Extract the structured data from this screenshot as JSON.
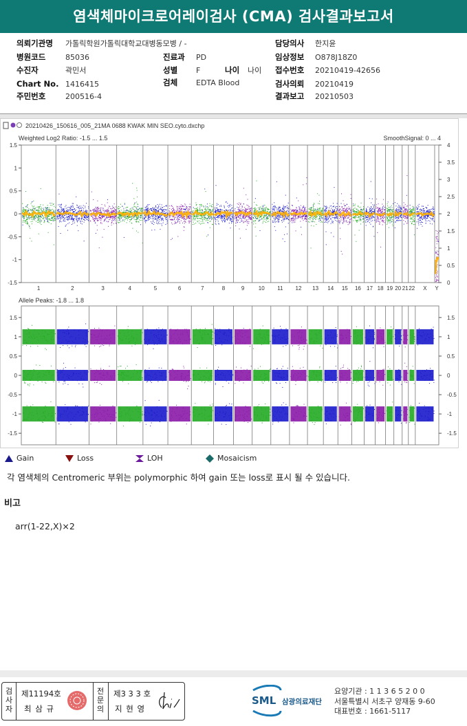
{
  "title": "염색체마이크로어레이검사 (CMA) 검사결과보고서",
  "info": {
    "institution_label": "의뢰기관명",
    "institution_value": "가톨릭학원가톨릭대학교대병동모병 / -",
    "hospital_code_label": "병원코드",
    "hospital_code_value": "85036",
    "department_label": "진료과",
    "department_value": "PD",
    "patient_label": "수진자",
    "patient_value": "곽민서",
    "sex_label": "성별",
    "sex_value": "F",
    "age_label": "나이",
    "age_value": "나이",
    "chart_label": "Chart No.",
    "chart_value": "1416415",
    "specimen_label": "검체",
    "specimen_value": "EDTA Blood",
    "id_label": "주민번호",
    "id_value": "200516-4",
    "doctor_label": "담당의사",
    "doctor_value": "한지윤",
    "clinical_label": "임상정보",
    "clinical_value": "O878J18Z0",
    "receipt_label": "접수번호",
    "receipt_value": "20210419-42656",
    "request_label": "검사의뢰",
    "request_value": "20210419",
    "report_label": "결과보고",
    "report_value": "20210503"
  },
  "plot": {
    "filename": "20210426_150616_005_21MA 0688 KWAK MIN SEO.cyto.dxchp",
    "log2_title": "Weighted Log2 Ratio: -1.5 ... 1.5",
    "smooth_title": "SmoothSignal: 0 ... 4",
    "allele_title": "Allele Peaks: -1.8 ... 1.8",
    "log2_left_ticks": [
      "1.5",
      "1",
      "0.5",
      "0",
      "-0.5",
      "-1",
      "-1.5"
    ],
    "smooth_right_ticks": [
      "4",
      "3.5",
      "3",
      "2.5",
      "2",
      "1.5",
      "1",
      "0.5",
      "0"
    ],
    "allele_left_ticks": [
      "1.5",
      "1",
      "0.5",
      "0",
      "-0.5",
      "-1",
      "-1.5"
    ],
    "allele_right_ticks": [
      "1.5",
      "1",
      "0.5",
      "0",
      "-0.5",
      "-1",
      "-1.5"
    ],
    "chromosomes": [
      "1",
      "2",
      "3",
      "4",
      "5",
      "6",
      "7",
      "8",
      "9",
      "10",
      "11",
      "12",
      "13",
      "14",
      "15",
      "16",
      "17",
      "18",
      "19",
      "20",
      "21",
      "22",
      "X",
      "Y"
    ]
  },
  "legend": {
    "gain": "Gain",
    "loss": "Loss",
    "loh": "LOH",
    "mosaicism": "Mosaicism"
  },
  "note": "각 염색체의 Centromeric 부위는 polymorphic 하여 gain 또는 loss로 표시 될 수 있습니다.",
  "remarks_label": "비고",
  "remarks_value": "arr(1-22,X)×2",
  "signature": {
    "label1": "검사자",
    "num1": "제11194호",
    "name1": "최 삼 규",
    "label2": "전문의",
    "num2": "제3 3 3 호",
    "name2": "지 현 영"
  },
  "org": {
    "logo": "SML",
    "name": "삼광의료재단",
    "line1": "요양기관 : 1 1 3 6 5 2 0 0",
    "line2": "서울특별시 서초구 양재동 9-60",
    "line3": "대표번호 : 1661-5117"
  },
  "colors": {
    "header": "#0f7a73",
    "green": "#22aa22",
    "blue": "#1a1acc",
    "purple": "#8a1aa8",
    "orange": "#ffb000"
  }
}
